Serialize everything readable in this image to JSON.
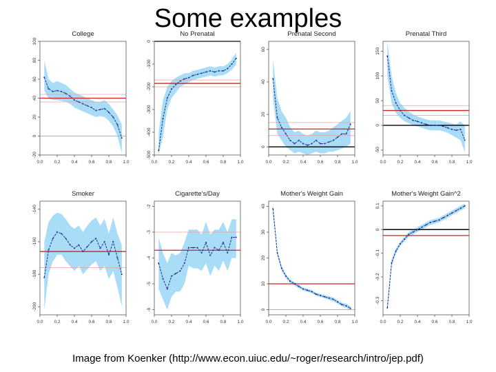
{
  "slide": {
    "title": "Some examples",
    "caption": "Image from Koenker (http://www.econ.uiuc.edu/~roger/research/intro/jep.pdf)"
  },
  "colors": {
    "band": "#a9dcf7",
    "line": "#1f2e8a",
    "ols": "#cc2222",
    "ols_ci": "#e8a0a0",
    "zero": "#000000",
    "zero_light": "#999999",
    "frame": "#555555"
  },
  "chart_data": [
    {
      "type": "line",
      "title": "College",
      "xlim": [
        0,
        1
      ],
      "xticks": [
        "0.0",
        "0.2",
        "0.4",
        "0.6",
        "0.8",
        "1.0"
      ],
      "ylim": [
        -20,
        100
      ],
      "yticks": [
        -20,
        0,
        20,
        40,
        60,
        80,
        100
      ],
      "x": [
        0.05,
        0.1,
        0.15,
        0.2,
        0.25,
        0.3,
        0.35,
        0.4,
        0.45,
        0.5,
        0.55,
        0.6,
        0.65,
        0.7,
        0.75,
        0.8,
        0.85,
        0.9,
        0.95
      ],
      "y": [
        62,
        50,
        47,
        48,
        47,
        45,
        42,
        38,
        36,
        34,
        32,
        30,
        27,
        28,
        29,
        25,
        20,
        12,
        -2
      ],
      "lower": [
        48,
        40,
        38,
        38,
        37,
        36,
        34,
        30,
        28,
        26,
        24,
        22,
        20,
        21,
        20,
        16,
        10,
        0,
        -18
      ],
      "upper": [
        80,
        60,
        56,
        58,
        56,
        54,
        50,
        46,
        44,
        42,
        40,
        38,
        36,
        36,
        38,
        34,
        28,
        22,
        12
      ],
      "ols": 40,
      "ols_ci": [
        36,
        44
      ],
      "zero_line": "light"
    },
    {
      "type": "line",
      "title": "No Prenatal",
      "xlim": [
        0,
        1
      ],
      "xticks": [
        "0.0",
        "0.2",
        "0.4",
        "0.6",
        "0.8",
        "1.0"
      ],
      "ylim": [
        -500,
        0
      ],
      "yticks": [
        0,
        -100,
        -200,
        -300,
        -400,
        -500
      ],
      "x": [
        0.05,
        0.1,
        0.15,
        0.2,
        0.25,
        0.3,
        0.35,
        0.4,
        0.45,
        0.5,
        0.55,
        0.6,
        0.65,
        0.7,
        0.75,
        0.8,
        0.85,
        0.9,
        0.95
      ],
      "y": [
        -480,
        -340,
        -250,
        -210,
        -190,
        -175,
        -165,
        -160,
        -150,
        -145,
        -140,
        -135,
        -130,
        -135,
        -130,
        -130,
        -120,
        -100,
        -75
      ],
      "lower": [
        -560,
        -420,
        -300,
        -250,
        -225,
        -200,
        -190,
        -180,
        -170,
        -165,
        -160,
        -155,
        -150,
        -155,
        -150,
        -150,
        -140,
        -125,
        -100
      ],
      "upper": [
        -400,
        -260,
        -200,
        -175,
        -160,
        -150,
        -140,
        -140,
        -130,
        -125,
        -120,
        -115,
        -110,
        -115,
        -110,
        -110,
        -100,
        -80,
        -50
      ],
      "ols": -185,
      "ols_ci": [
        -170,
        -200
      ],
      "zero_line": "dark"
    },
    {
      "type": "line",
      "title": "Prenatal Second",
      "xlim": [
        0,
        1
      ],
      "xticks": [
        "0.0",
        "0.2",
        "0.4",
        "0.6",
        "0.8",
        "1.0"
      ],
      "ylim": [
        -5,
        65
      ],
      "yticks": [
        0,
        20,
        40,
        60
      ],
      "x": [
        0.05,
        0.1,
        0.15,
        0.2,
        0.25,
        0.3,
        0.35,
        0.4,
        0.45,
        0.5,
        0.55,
        0.6,
        0.65,
        0.7,
        0.75,
        0.8,
        0.85,
        0.9,
        0.95
      ],
      "y": [
        42,
        18,
        12,
        8,
        4,
        2,
        4,
        2,
        1,
        2,
        4,
        2,
        2,
        3,
        4,
        6,
        8,
        8,
        14
      ],
      "lower": [
        30,
        8,
        4,
        0,
        -2,
        -4,
        -3,
        -4,
        -5,
        -4,
        -3,
        -4,
        -4,
        -3,
        -3,
        -2,
        -1,
        0,
        2
      ],
      "upper": [
        54,
        30,
        22,
        18,
        12,
        9,
        10,
        8,
        7,
        8,
        10,
        9,
        9,
        10,
        12,
        14,
        16,
        18,
        22
      ],
      "ols": 11,
      "ols_ci": [
        7,
        15
      ],
      "zero_line": "dark"
    },
    {
      "type": "line",
      "title": "Prenatal Third",
      "xlim": [
        0,
        1
      ],
      "xticks": [
        "0.0",
        "0.2",
        "0.4",
        "0.6",
        "0.8",
        "1.0"
      ],
      "ylim": [
        -60,
        170
      ],
      "yticks": [
        -50,
        0,
        50,
        100,
        150
      ],
      "x": [
        0.05,
        0.1,
        0.15,
        0.2,
        0.25,
        0.3,
        0.35,
        0.4,
        0.45,
        0.5,
        0.55,
        0.6,
        0.65,
        0.7,
        0.75,
        0.8,
        0.85,
        0.9,
        0.95
      ],
      "y": [
        140,
        70,
        45,
        30,
        20,
        15,
        10,
        8,
        5,
        2,
        0,
        0,
        0,
        -2,
        -5,
        -8,
        -10,
        -8,
        -30
      ],
      "lower": [
        100,
        45,
        25,
        15,
        8,
        4,
        0,
        -2,
        -5,
        -8,
        -10,
        -10,
        -10,
        -12,
        -15,
        -20,
        -25,
        -30,
        -55
      ],
      "upper": [
        170,
        100,
        65,
        45,
        35,
        28,
        22,
        18,
        15,
        12,
        10,
        10,
        10,
        8,
        6,
        4,
        2,
        8,
        0
      ],
      "ols": 30,
      "ols_ci": [
        20,
        40
      ],
      "zero_line": "dark"
    },
    {
      "type": "line",
      "title": "Smoker",
      "xlim": [
        0,
        1
      ],
      "xticks": [
        "0.0",
        "0.2",
        "0.4",
        "0.6",
        "0.8",
        "1.0"
      ],
      "ylim": [
        -205,
        -135
      ],
      "yticks": [
        -140,
        -160,
        -180,
        -200
      ],
      "x": [
        0.05,
        0.1,
        0.15,
        0.2,
        0.25,
        0.3,
        0.35,
        0.4,
        0.45,
        0.5,
        0.55,
        0.6,
        0.65,
        0.7,
        0.75,
        0.8,
        0.85,
        0.9,
        0.95
      ],
      "y": [
        -182,
        -165,
        -158,
        -154,
        -155,
        -158,
        -162,
        -164,
        -162,
        -166,
        -163,
        -160,
        -158,
        -164,
        -160,
        -168,
        -160,
        -170,
        -180
      ],
      "lower": [
        -202,
        -180,
        -172,
        -168,
        -168,
        -172,
        -175,
        -178,
        -175,
        -180,
        -177,
        -174,
        -172,
        -178,
        -175,
        -183,
        -178,
        -188,
        -200
      ],
      "upper": [
        -160,
        -148,
        -144,
        -142,
        -143,
        -146,
        -150,
        -152,
        -150,
        -154,
        -150,
        -147,
        -145,
        -150,
        -146,
        -155,
        -145,
        -155,
        -162
      ],
      "ols": -166,
      "ols_ci": [
        -176
      ]
    },
    {
      "type": "line",
      "title": "Cigarette's/Day",
      "xlim": [
        0,
        1
      ],
      "xticks": [
        "0.0",
        "0.2",
        "0.4",
        "0.6",
        "0.8",
        "1.0"
      ],
      "ylim": [
        -6.2,
        -1.8
      ],
      "yticks": [
        -2,
        -3,
        -4,
        -5,
        -6
      ],
      "x": [
        0.05,
        0.1,
        0.15,
        0.2,
        0.25,
        0.3,
        0.35,
        0.4,
        0.45,
        0.5,
        0.55,
        0.6,
        0.65,
        0.7,
        0.75,
        0.8,
        0.85,
        0.9,
        0.95
      ],
      "y": [
        -4.2,
        -4.8,
        -5.2,
        -4.7,
        -4.6,
        -4.5,
        -4.2,
        -3.6,
        -3.6,
        -3.6,
        -3.8,
        -3.4,
        -3.9,
        -3.6,
        -3.7,
        -3.4,
        -3.8,
        -3.2,
        -3.2
      ],
      "lower": [
        -5.2,
        -5.6,
        -6.0,
        -5.5,
        -5.3,
        -5.3,
        -5.0,
        -4.3,
        -4.4,
        -4.4,
        -4.5,
        -4.2,
        -4.7,
        -4.3,
        -4.5,
        -4.1,
        -4.5,
        -4.0,
        -4.0
      ],
      "upper": [
        -3.2,
        -3.8,
        -4.2,
        -3.8,
        -3.9,
        -3.8,
        -3.4,
        -2.9,
        -2.9,
        -2.9,
        -3.1,
        -2.6,
        -3.1,
        -2.9,
        -2.9,
        -2.6,
        -3.0,
        -2.5,
        -2.5
      ],
      "ols": -3.7,
      "ols_ci": [
        -3.0
      ]
    },
    {
      "type": "line",
      "title": "Mother's Weight Gain",
      "xlim": [
        0,
        1
      ],
      "xticks": [
        "0.0",
        "0.2",
        "0.4",
        "0.6",
        "0.8",
        "1.0"
      ],
      "ylim": [
        -2,
        42
      ],
      "yticks": [
        0,
        10,
        20,
        30,
        40
      ],
      "x": [
        0.05,
        0.1,
        0.15,
        0.2,
        0.25,
        0.3,
        0.35,
        0.4,
        0.45,
        0.5,
        0.55,
        0.6,
        0.65,
        0.7,
        0.75,
        0.8,
        0.85,
        0.9,
        0.95
      ],
      "y": [
        39,
        22,
        16,
        13,
        11,
        10,
        9,
        8,
        7.5,
        7,
        6,
        5.5,
        5,
        4.5,
        4,
        3,
        2,
        1.5,
        0.5
      ],
      "lower": [
        37,
        21,
        15,
        12.2,
        10.3,
        9.3,
        8.3,
        7.4,
        6.9,
        6.4,
        5.4,
        4.9,
        4.4,
        3.8,
        3.3,
        2.3,
        1.3,
        0.7,
        -0.3
      ],
      "upper": [
        41,
        23,
        17,
        13.8,
        11.7,
        10.7,
        9.7,
        8.6,
        8.1,
        7.6,
        6.6,
        6.1,
        5.6,
        5.2,
        4.7,
        3.7,
        2.7,
        2.3,
        1.3
      ],
      "ols": 10,
      "zero_line": "light"
    },
    {
      "type": "line",
      "title": "Mother's Weight Gain^2",
      "xlim": [
        0,
        1
      ],
      "xticks": [
        "0.0",
        "0.2",
        "0.4",
        "0.6",
        "0.8",
        "1.0"
      ],
      "ylim": [
        -0.36,
        0.12
      ],
      "yticks": [
        0.1,
        0.0,
        -0.1,
        -0.2,
        -0.3
      ],
      "x": [
        0.05,
        0.1,
        0.15,
        0.2,
        0.25,
        0.3,
        0.35,
        0.4,
        0.45,
        0.5,
        0.55,
        0.6,
        0.65,
        0.7,
        0.75,
        0.8,
        0.85,
        0.9,
        0.95
      ],
      "y": [
        -0.33,
        -0.14,
        -0.09,
        -0.06,
        -0.04,
        -0.02,
        -0.01,
        0.0,
        0.01,
        0.02,
        0.03,
        0.035,
        0.04,
        0.05,
        0.06,
        0.07,
        0.08,
        0.09,
        0.1
      ],
      "lower": [
        -0.35,
        -0.155,
        -0.1,
        -0.07,
        -0.05,
        -0.03,
        -0.02,
        -0.01,
        0.0,
        0.01,
        0.02,
        0.025,
        0.03,
        0.04,
        0.05,
        0.06,
        0.07,
        0.08,
        0.09
      ],
      "upper": [
        -0.31,
        -0.125,
        -0.08,
        -0.05,
        -0.03,
        -0.01,
        0.0,
        0.01,
        0.02,
        0.03,
        0.04,
        0.045,
        0.05,
        0.06,
        0.07,
        0.08,
        0.09,
        0.1,
        0.11
      ],
      "ols": -0.025,
      "zero_line": "dark"
    }
  ]
}
